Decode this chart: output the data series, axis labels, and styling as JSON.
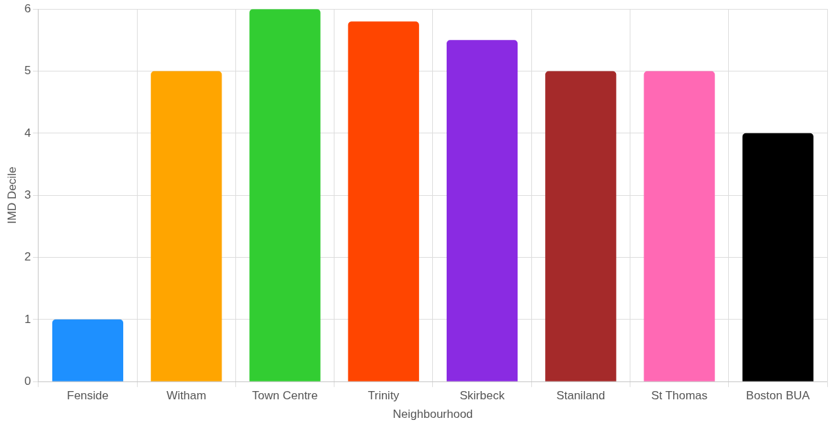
{
  "chart_data": {
    "type": "bar",
    "xlabel": "Neighbourhood",
    "ylabel": "IMD Decile",
    "categories": [
      "Fenside",
      "Witham",
      "Town Centre",
      "Trinity",
      "Skirbeck",
      "Staniland",
      "St Thomas",
      "Boston BUA"
    ],
    "values": [
      1,
      5,
      6,
      5.8,
      5.5,
      5,
      5,
      4
    ],
    "colors": [
      "#1e90ff",
      "#ffa500",
      "#32cd32",
      "#ff4500",
      "#8a2be2",
      "#a52a2a",
      "#ff69b4",
      "#000000"
    ],
    "ylim": [
      0,
      6
    ],
    "yticks": [
      0,
      1,
      2,
      3,
      4,
      5,
      6
    ],
    "grid": true,
    "legend": false
  }
}
